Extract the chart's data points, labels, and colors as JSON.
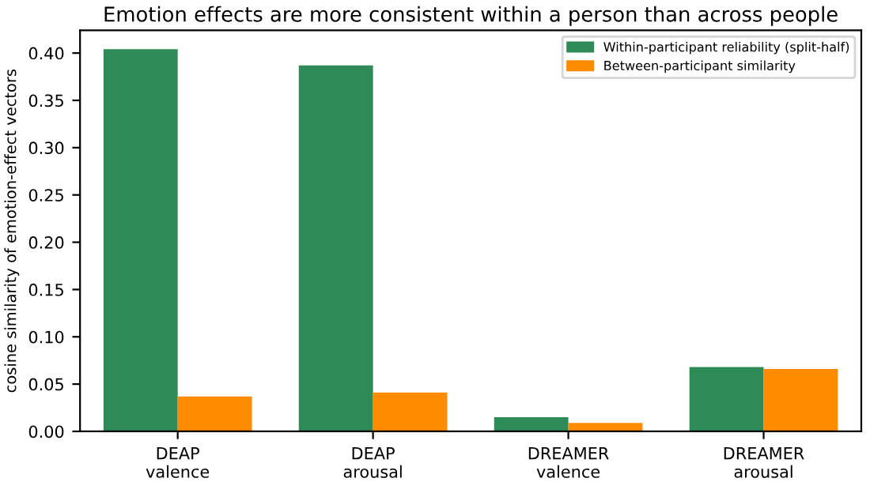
{
  "chart_data": {
    "type": "bar",
    "title": "Emotion effects are more consistent within a person than across people",
    "ylabel": "cosine similarity of emotion-effect vectors",
    "categories": [
      "DEAP\nvalence",
      "DEAP\narousal",
      "DREAMER\nvalence",
      "DREAMER\narousal"
    ],
    "series": [
      {
        "name": "Within-participant reliability (split-half)",
        "color": "#2e8b57",
        "values": [
          0.404,
          0.387,
          0.015,
          0.068
        ]
      },
      {
        "name": "Between-participant similarity",
        "color": "#ff8c00",
        "values": [
          0.037,
          0.041,
          0.009,
          0.066
        ]
      }
    ],
    "ylim": [
      0,
      0.424
    ],
    "yticks": [
      {
        "value": 0,
        "label": "0.00"
      },
      {
        "value": 0.05,
        "label": "0.05"
      },
      {
        "value": 0.1,
        "label": "0.10"
      },
      {
        "value": 0.15,
        "label": "0.15"
      },
      {
        "value": 0.2,
        "label": "0.20"
      },
      {
        "value": 0.25,
        "label": "0.25"
      },
      {
        "value": 0.3,
        "label": "0.30"
      },
      {
        "value": 0.35,
        "label": "0.35"
      },
      {
        "value": 0.4,
        "label": "0.40"
      }
    ],
    "legend": "top right"
  }
}
